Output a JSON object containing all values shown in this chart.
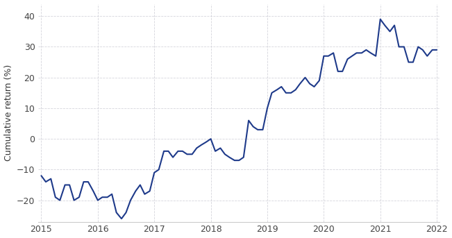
{
  "ylabel": "Cumulative return (%)",
  "line_color": "#1e3a8a",
  "background_color": "#ffffff",
  "grid_color": "#d0d0d8",
  "ylim": [
    -27,
    44
  ],
  "yticks": [
    -20,
    -10,
    0,
    10,
    20,
    30,
    40
  ],
  "xlim": [
    -0.05,
    7.05
  ],
  "xtick_positions": [
    0,
    1,
    2,
    3,
    4,
    5,
    6,
    7
  ],
  "xtick_labels": [
    "2015",
    "2016",
    "2017",
    "2018",
    "2019",
    "2020",
    "2021",
    "2022"
  ],
  "x": [
    0.0,
    0.08,
    0.17,
    0.25,
    0.33,
    0.42,
    0.5,
    0.58,
    0.67,
    0.75,
    0.83,
    0.92,
    1.0,
    1.08,
    1.17,
    1.25,
    1.33,
    1.42,
    1.5,
    1.58,
    1.67,
    1.75,
    1.83,
    1.92,
    2.0,
    2.08,
    2.17,
    2.25,
    2.33,
    2.42,
    2.5,
    2.58,
    2.67,
    2.75,
    2.83,
    2.92,
    3.0,
    3.08,
    3.17,
    3.25,
    3.33,
    3.42,
    3.5,
    3.58,
    3.67,
    3.75,
    3.83,
    3.92,
    4.0,
    4.08,
    4.17,
    4.25,
    4.33,
    4.42,
    4.5,
    4.58,
    4.67,
    4.75,
    4.83,
    4.92,
    5.0,
    5.08,
    5.17,
    5.25,
    5.33,
    5.42,
    5.5,
    5.58,
    5.67,
    5.75,
    5.83,
    5.92,
    6.0,
    6.08,
    6.17,
    6.25,
    6.33,
    6.42,
    6.5,
    6.58,
    6.67,
    6.75,
    6.83,
    6.92,
    7.0
  ],
  "y": [
    -12,
    -14,
    -13,
    -19,
    -20,
    -15,
    -15,
    -20,
    -19,
    -14,
    -14,
    -17,
    -20,
    -19,
    -19,
    -18,
    -24,
    -26,
    -24,
    -20,
    -17,
    -15,
    -18,
    -17,
    -11,
    -10,
    -4,
    -4,
    -6,
    -4,
    -4,
    -5,
    -5,
    -3,
    -2,
    -1,
    0,
    -4,
    -3,
    -5,
    -6,
    -7,
    -7,
    -6,
    6,
    4,
    3,
    3,
    10,
    15,
    16,
    17,
    15,
    15,
    16,
    18,
    20,
    18,
    17,
    19,
    27,
    27,
    28,
    22,
    22,
    26,
    27,
    28,
    28,
    29,
    28,
    27,
    39,
    37,
    35,
    37,
    30,
    30,
    25,
    25,
    30,
    29,
    27,
    29,
    29
  ],
  "linewidth": 1.5,
  "tick_fontsize": 9,
  "ylabel_fontsize": 9
}
